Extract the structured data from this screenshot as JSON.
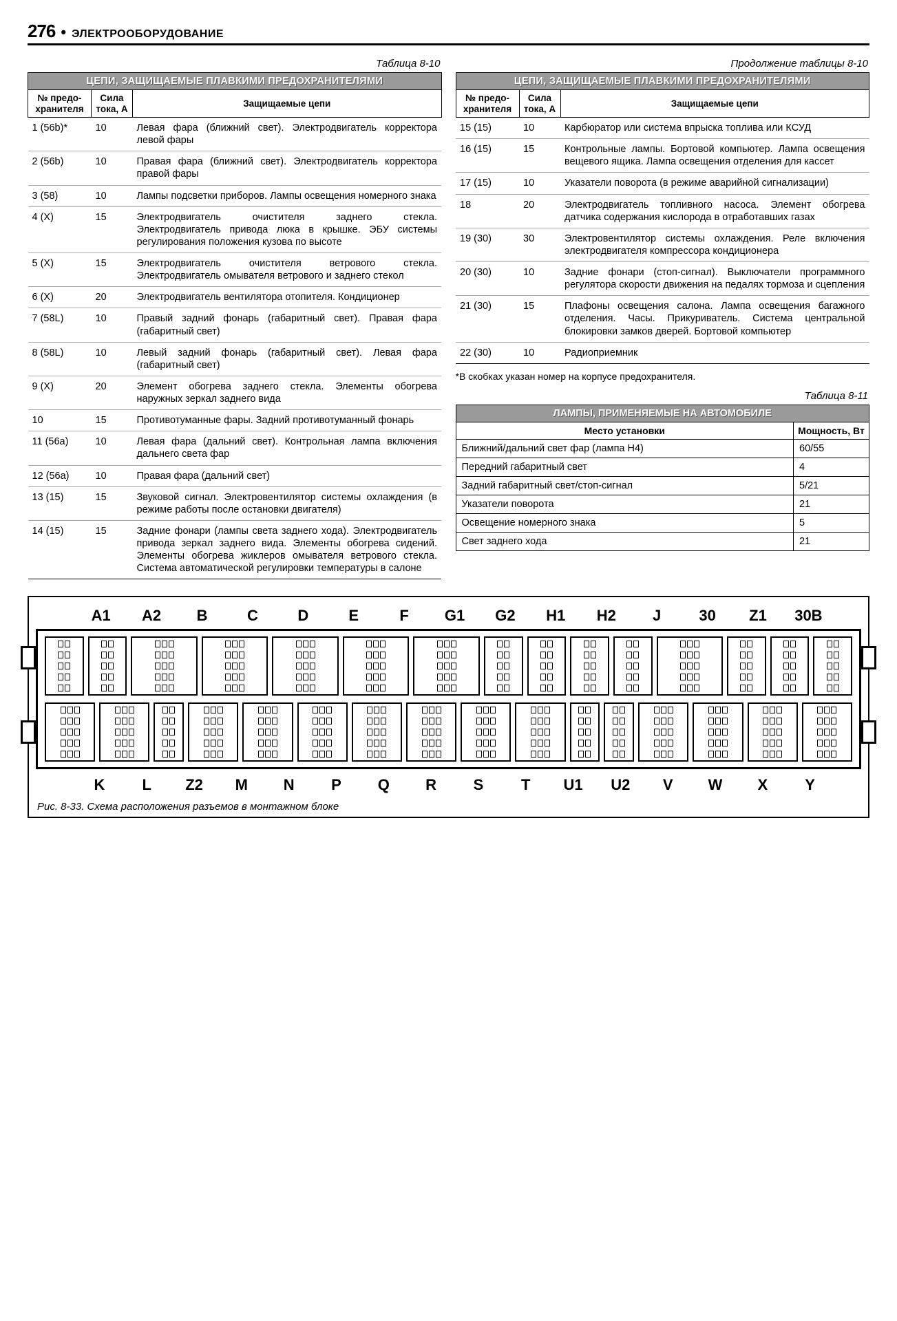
{
  "page": {
    "number": "276",
    "bullet": "•",
    "section": "ЭЛЕКТРООБОРУДОВАНИЕ"
  },
  "captions": {
    "t810": "Таблица 8-10",
    "t810cont": "Продолжение таблицы 8-10",
    "t811": "Таблица 8-11",
    "diagram": "Рис. 8-33. Схема расположения разъемов в монтажном блоке"
  },
  "fuse_table": {
    "title": "ЦЕПИ, ЗАЩИЩАЕМЫЕ ПЛАВКИМИ ПРЕДОХРАНИТЕЛЯМИ",
    "headers": [
      "№ предо-\nхранителя",
      "Сила\nтока, А",
      "Защищаемые цепи"
    ]
  },
  "fuse_left": [
    {
      "n": "1 (56b)*",
      "a": "10",
      "d": "Левая фара (ближний свет). Электродвигатель корректора левой фары"
    },
    {
      "n": "2 (56b)",
      "a": "10",
      "d": "Правая фара (ближний свет). Электродвигатель корректора правой фары"
    },
    {
      "n": "3 (58)",
      "a": "10",
      "d": "Лампы подсветки приборов. Лампы освещения номерного знака"
    },
    {
      "n": "4 (X)",
      "a": "15",
      "d": "Электродвигатель очистителя заднего стекла. Электродвигатель привода люка в крышке. ЭБУ системы регулирования положения кузова по высоте"
    },
    {
      "n": "5 (X)",
      "a": "15",
      "d": "Электродвигатель очистителя ветрового стекла. Электродвигатель омывателя ветрового и заднего стекол"
    },
    {
      "n": "6 (X)",
      "a": "20",
      "d": "Электродвигатель вентилятора отопителя. Кондиционер"
    },
    {
      "n": "7 (58L)",
      "a": "10",
      "d": "Правый задний фонарь (габаритный свет). Правая фара (габаритный свет)"
    },
    {
      "n": "8 (58L)",
      "a": "10",
      "d": "Левый задний фонарь (габаритный свет). Левая фара (габаритный свет)"
    },
    {
      "n": "9 (X)",
      "a": "20",
      "d": "Элемент обогрева заднего стекла. Элементы обогрева наружных зеркал заднего вида"
    },
    {
      "n": "10",
      "a": "15",
      "d": "Противотуманные фары. Задний противотуманный фонарь"
    },
    {
      "n": "11 (56a)",
      "a": "10",
      "d": "Левая фара (дальний свет). Контрольная лампа включения дальнего света фар"
    },
    {
      "n": "12 (56a)",
      "a": "10",
      "d": "Правая фара (дальний свет)"
    },
    {
      "n": "13 (15)",
      "a": "15",
      "d": "Звуковой сигнал. Электровентилятор системы охлаждения (в режиме работы после остановки двигателя)"
    },
    {
      "n": "14 (15)",
      "a": "15",
      "d": "Задние фонари (лампы света заднего хода). Электродвигатель привода зеркал заднего вида. Элементы обогрева сидений. Элементы обогрева жиклеров омывателя ветрового стекла. Система автоматической регулировки температуры в салоне"
    }
  ],
  "fuse_right": [
    {
      "n": "15 (15)",
      "a": "10",
      "d": "Карбюратор или система впрыска топлива или КСУД"
    },
    {
      "n": "16 (15)",
      "a": "15",
      "d": "Контрольные лампы. Бортовой компьютер. Лампа освещения вещевого ящика. Лампа освещения отделения для кассет"
    },
    {
      "n": "17 (15)",
      "a": "10",
      "d": "Указатели поворота (в режиме аварийной сигнализации)"
    },
    {
      "n": "18",
      "a": "20",
      "d": "Электродвигатель топливного насоса. Элемент обогрева датчика содержания кислорода в отработавших газах"
    },
    {
      "n": "19 (30)",
      "a": "30",
      "d": "Электровентилятор системы охлаждения. Реле включения электродвигателя компрессора кондиционера"
    },
    {
      "n": "20 (30)",
      "a": "10",
      "d": "Задние фонари (стоп-сигнал). Выключатели программного регулятора скорости движения на педалях тормоза и сцепления"
    },
    {
      "n": "21 (30)",
      "a": "15",
      "d": "Плафоны освещения салона. Лампа освещения багажного отделения. Часы. Прикуриватель. Система центральной блокировки замков дверей. Бортовой компьютер"
    },
    {
      "n": "22 (30)",
      "a": "10",
      "d": "Радиоприемник"
    }
  ],
  "footnote": "*В скобках указан номер на корпусе предохранителя.",
  "lamps_table": {
    "title": "ЛАМПЫ, ПРИМЕНЯЕМЫЕ НА АВТОМОБИЛЕ",
    "headers": [
      "Место установки",
      "Мощность, Вт"
    ],
    "rows": [
      {
        "place": "Ближний/дальний свет фар (лампа H4)",
        "watt": "60/55"
      },
      {
        "place": "Передний габаритный свет",
        "watt": "4"
      },
      {
        "place": "Задний габаритный свет/стоп-сигнал",
        "watt": "5/21"
      },
      {
        "place": "Указатели поворота",
        "watt": "21"
      },
      {
        "place": "Освещение номерного знака",
        "watt": "5"
      },
      {
        "place": "Свет заднего хода",
        "watt": "21"
      }
    ]
  },
  "diagram": {
    "top_labels": [
      "A1",
      "A2",
      "B",
      "C",
      "D",
      "E",
      "F",
      "G1",
      "G2",
      "H1",
      "H2",
      "J",
      "30",
      "Z1",
      "30B"
    ],
    "bot_labels": [
      "K",
      "L",
      "Z2",
      "M",
      "N",
      "P",
      "Q",
      "R",
      "S",
      "T",
      "U1",
      "U2",
      "V",
      "W",
      "X",
      "Y"
    ],
    "top_row_sizes": [
      "s",
      "s",
      "n",
      "n",
      "n",
      "n",
      "n",
      "s",
      "s",
      "s",
      "s",
      "n",
      "s",
      "s",
      "s"
    ],
    "bot_row_sizes": [
      "n",
      "n",
      "s",
      "n",
      "n",
      "n",
      "n",
      "n",
      "n",
      "n",
      "s",
      "s",
      "n",
      "n",
      "n",
      "n"
    ],
    "pins_per_col": 5,
    "cols_normal": 3,
    "cols_small": 2
  }
}
